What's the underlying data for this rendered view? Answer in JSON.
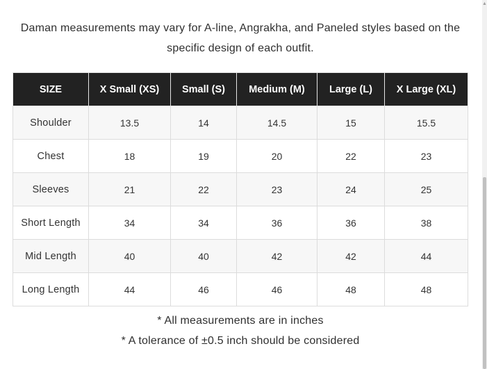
{
  "intro": {
    "line1": "Daman measurements may vary for A-line, Angrakha, and Paneled styles based on the",
    "line2": "specific design of each outfit."
  },
  "size_table": {
    "headers": [
      "SIZE",
      "X Small (XS)",
      "Small (S)",
      "Medium (M)",
      "Large (L)",
      "X Large (XL)"
    ],
    "rows": [
      {
        "label": "Shoulder",
        "values": [
          "13.5",
          "14",
          "14.5",
          "15",
          "15.5"
        ]
      },
      {
        "label": "Chest",
        "values": [
          "18",
          "19",
          "20",
          "22",
          "23"
        ]
      },
      {
        "label": "Sleeves",
        "values": [
          "21",
          "22",
          "23",
          "24",
          "25"
        ]
      },
      {
        "label": "Short Length",
        "values": [
          "34",
          "34",
          "36",
          "36",
          "38"
        ]
      },
      {
        "label": "Mid Length",
        "values": [
          "40",
          "40",
          "42",
          "42",
          "44"
        ]
      },
      {
        "label": "Long Length",
        "values": [
          "44",
          "46",
          "46",
          "48",
          "48"
        ]
      }
    ]
  },
  "notes": {
    "note1": "* All measurements are in inches",
    "note2": "* A tolerance of ±0.5 inch should be considered"
  },
  "icons": {
    "scroll_up": "chevron-up-icon"
  }
}
